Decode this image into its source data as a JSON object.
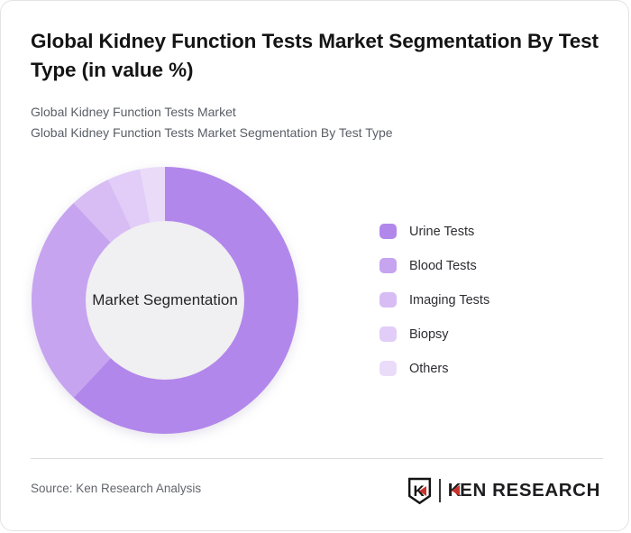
{
  "header": {
    "title": "Global Kidney Function Tests Market Segmentation By Test Type (in value %)",
    "subtitle_line1": "Global Kidney Function Tests Market",
    "subtitle_line2": "Global Kidney Function Tests Market Segmentation By Test Type"
  },
  "chart_data": {
    "type": "pie",
    "variant": "donut",
    "title": "Global Kidney Function Tests Market Segmentation By Test Type (in value %)",
    "center_label": "Market Segmentation",
    "labels": [
      "Urine Tests",
      "Blood Tests",
      "Imaging Tests",
      "Biopsy",
      "Others"
    ],
    "values": [
      62,
      26,
      5,
      4,
      3
    ],
    "unit": "% of market value (estimated from arc angles; no numeric labels shown)",
    "colors": [
      "#b287eb",
      "#c6a4f0",
      "#d8bdf4",
      "#e1cdf7",
      "#eadcf9"
    ],
    "start_angle_deg": 0,
    "direction": "clockwise",
    "legend_position": "right",
    "inner_circle_color": "#f0eff1"
  },
  "footer": {
    "source_text": "Source: Ken Research Analysis",
    "logo": {
      "emblem_letter": "K",
      "text_k": "K",
      "text_rest": "EN RESEARCH",
      "accent_color": "#c9322c"
    }
  }
}
